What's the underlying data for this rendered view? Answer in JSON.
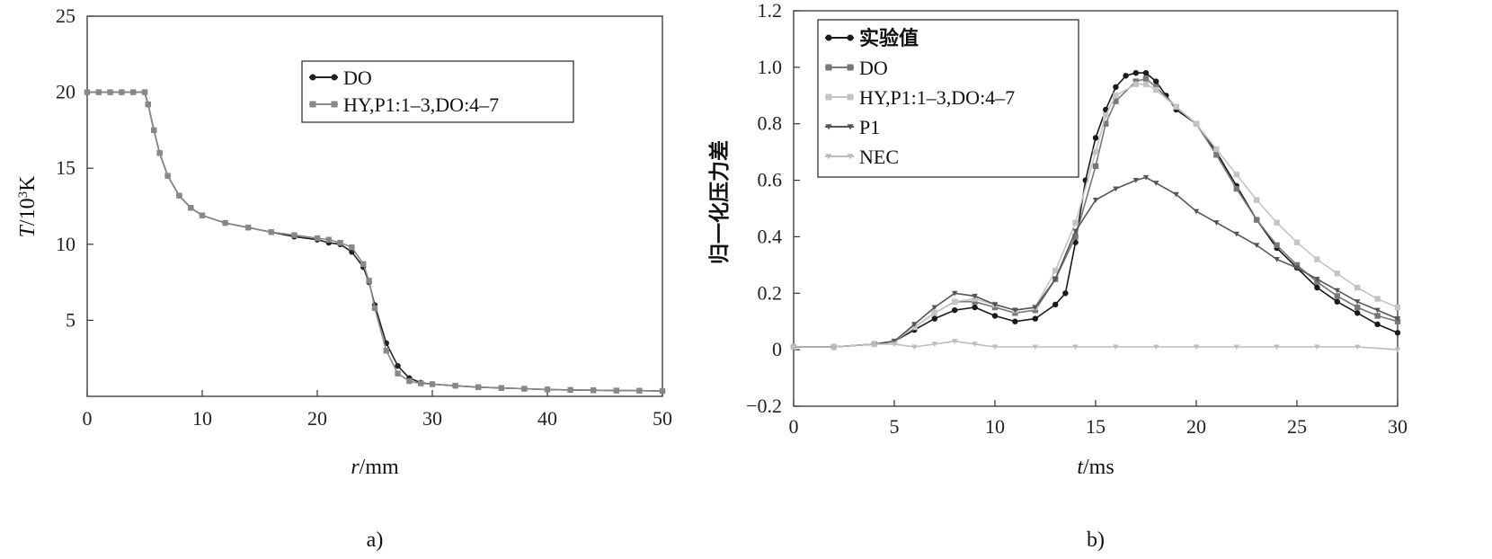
{
  "chart_data": [
    {
      "type": "line",
      "caption": "a)",
      "xlabel_var": "r",
      "xlabel_unit": "/mm",
      "ylabel_var": "T",
      "ylabel_unit": "/10",
      "ylabel_sup": "3",
      "ylabel_tail": "K",
      "xlim": [
        0,
        50
      ],
      "ylim": [
        0,
        25
      ],
      "xticks": [
        "0",
        "10",
        "20",
        "30",
        "40",
        "50"
      ],
      "yticks": [
        "5",
        "10",
        "15",
        "20",
        "25"
      ],
      "legend_position": "top-right",
      "series": [
        {
          "name": "DO",
          "color": "#222222",
          "marker": "circle",
          "points": [
            [
              0,
              20
            ],
            [
              1,
              20
            ],
            [
              2,
              20
            ],
            [
              3,
              20
            ],
            [
              4,
              20
            ],
            [
              5,
              20
            ],
            [
              5.3,
              19.2
            ],
            [
              5.8,
              17.5
            ],
            [
              6.3,
              16
            ],
            [
              7,
              14.5
            ],
            [
              8,
              13.2
            ],
            [
              9,
              12.4
            ],
            [
              10,
              11.9
            ],
            [
              12,
              11.4
            ],
            [
              14,
              11.1
            ],
            [
              16,
              10.8
            ],
            [
              18,
              10.5
            ],
            [
              20,
              10.3
            ],
            [
              21,
              10.1
            ],
            [
              22,
              10
            ],
            [
              23,
              9.5
            ],
            [
              24,
              8.5
            ],
            [
              24.5,
              7.5
            ],
            [
              25,
              6
            ],
            [
              26,
              3.5
            ],
            [
              27,
              2
            ],
            [
              28,
              1.2
            ],
            [
              29,
              0.9
            ],
            [
              30,
              0.8
            ],
            [
              32,
              0.7
            ],
            [
              34,
              0.6
            ],
            [
              36,
              0.55
            ],
            [
              38,
              0.5
            ],
            [
              40,
              0.45
            ],
            [
              42,
              0.42
            ],
            [
              44,
              0.4
            ],
            [
              46,
              0.38
            ],
            [
              48,
              0.37
            ],
            [
              50,
              0.35
            ]
          ]
        },
        {
          "name": "HY,P1:1–3,DO:4–7",
          "color": "#888888",
          "marker": "square",
          "points": [
            [
              0,
              20
            ],
            [
              1,
              20
            ],
            [
              2,
              20
            ],
            [
              3,
              20
            ],
            [
              4,
              20
            ],
            [
              5,
              20
            ],
            [
              5.3,
              19.2
            ],
            [
              5.8,
              17.5
            ],
            [
              6.3,
              16
            ],
            [
              7,
              14.5
            ],
            [
              8,
              13.2
            ],
            [
              9,
              12.4
            ],
            [
              10,
              11.9
            ],
            [
              12,
              11.4
            ],
            [
              14,
              11.1
            ],
            [
              16,
              10.8
            ],
            [
              18,
              10.6
            ],
            [
              20,
              10.4
            ],
            [
              21,
              10.3
            ],
            [
              22,
              10.1
            ],
            [
              23,
              9.8
            ],
            [
              24,
              8.7
            ],
            [
              24.5,
              7.6
            ],
            [
              25,
              5.8
            ],
            [
              26,
              3
            ],
            [
              27,
              1.5
            ],
            [
              28,
              1
            ],
            [
              29,
              0.85
            ],
            [
              30,
              0.8
            ],
            [
              32,
              0.7
            ],
            [
              34,
              0.6
            ],
            [
              36,
              0.55
            ],
            [
              38,
              0.5
            ],
            [
              40,
              0.45
            ],
            [
              42,
              0.42
            ],
            [
              44,
              0.4
            ],
            [
              46,
              0.38
            ],
            [
              48,
              0.37
            ],
            [
              50,
              0.35
            ]
          ]
        }
      ]
    },
    {
      "type": "line",
      "caption": "b)",
      "xlabel_var": "t",
      "xlabel_unit": "/ms",
      "ylabel": "归一化压力差",
      "xlim": [
        0,
        30
      ],
      "ylim": [
        -0.2,
        1.2
      ],
      "xticks": [
        "0",
        "5",
        "10",
        "15",
        "20",
        "25",
        "30"
      ],
      "yticks": [
        "−0.2",
        "0",
        "0.2",
        "0.4",
        "0.6",
        "0.8",
        "1.0",
        "1.2"
      ],
      "legend_position": "top-left",
      "series": [
        {
          "name": "实验值",
          "color": "#1a1a1a",
          "marker": "circle",
          "points": [
            [
              0,
              0.01
            ],
            [
              2,
              0.01
            ],
            [
              4,
              0.02
            ],
            [
              5,
              0.03
            ],
            [
              6,
              0.07
            ],
            [
              7,
              0.11
            ],
            [
              8,
              0.14
            ],
            [
              9,
              0.15
            ],
            [
              10,
              0.12
            ],
            [
              11,
              0.1
            ],
            [
              12,
              0.11
            ],
            [
              13,
              0.16
            ],
            [
              13.5,
              0.2
            ],
            [
              14,
              0.38
            ],
            [
              14.5,
              0.6
            ],
            [
              15,
              0.75
            ],
            [
              15.5,
              0.85
            ],
            [
              16,
              0.93
            ],
            [
              16.5,
              0.97
            ],
            [
              17,
              0.98
            ],
            [
              17.5,
              0.98
            ],
            [
              18,
              0.95
            ],
            [
              18.5,
              0.9
            ],
            [
              19,
              0.85
            ],
            [
              20,
              0.8
            ],
            [
              21,
              0.7
            ],
            [
              22,
              0.58
            ],
            [
              23,
              0.46
            ],
            [
              24,
              0.36
            ],
            [
              25,
              0.29
            ],
            [
              26,
              0.22
            ],
            [
              27,
              0.17
            ],
            [
              28,
              0.13
            ],
            [
              29,
              0.09
            ],
            [
              30,
              0.06
            ]
          ]
        },
        {
          "name": "DO",
          "color": "#777777",
          "marker": "square",
          "points": [
            [
              0,
              0.01
            ],
            [
              2,
              0.01
            ],
            [
              4,
              0.02
            ],
            [
              5,
              0.03
            ],
            [
              6,
              0.08
            ],
            [
              7,
              0.13
            ],
            [
              8,
              0.17
            ],
            [
              9,
              0.17
            ],
            [
              10,
              0.15
            ],
            [
              11,
              0.13
            ],
            [
              12,
              0.14
            ],
            [
              13,
              0.25
            ],
            [
              14,
              0.4
            ],
            [
              15,
              0.65
            ],
            [
              15.5,
              0.8
            ],
            [
              16,
              0.88
            ],
            [
              17,
              0.95
            ],
            [
              17.5,
              0.96
            ],
            [
              18,
              0.93
            ],
            [
              19,
              0.86
            ],
            [
              20,
              0.8
            ],
            [
              21,
              0.69
            ],
            [
              22,
              0.57
            ],
            [
              23,
              0.46
            ],
            [
              24,
              0.37
            ],
            [
              25,
              0.3
            ],
            [
              26,
              0.24
            ],
            [
              27,
              0.19
            ],
            [
              28,
              0.15
            ],
            [
              29,
              0.12
            ],
            [
              30,
              0.1
            ]
          ]
        },
        {
          "name": "HY,P1:1–3,DO:4–7",
          "color": "#c4c4c4",
          "marker": "square",
          "points": [
            [
              0,
              0.01
            ],
            [
              2,
              0.01
            ],
            [
              4,
              0.02
            ],
            [
              5,
              0.03
            ],
            [
              6,
              0.08
            ],
            [
              7,
              0.13
            ],
            [
              8,
              0.17
            ],
            [
              9,
              0.18
            ],
            [
              10,
              0.16
            ],
            [
              11,
              0.14
            ],
            [
              12,
              0.15
            ],
            [
              13,
              0.28
            ],
            [
              14,
              0.45
            ],
            [
              15,
              0.7
            ],
            [
              15.5,
              0.83
            ],
            [
              16,
              0.9
            ],
            [
              17,
              0.94
            ],
            [
              17.5,
              0.94
            ],
            [
              18,
              0.92
            ],
            [
              19,
              0.86
            ],
            [
              20,
              0.8
            ],
            [
              21,
              0.71
            ],
            [
              22,
              0.62
            ],
            [
              23,
              0.53
            ],
            [
              24,
              0.45
            ],
            [
              25,
              0.38
            ],
            [
              26,
              0.32
            ],
            [
              27,
              0.27
            ],
            [
              28,
              0.22
            ],
            [
              29,
              0.18
            ],
            [
              30,
              0.15
            ]
          ]
        },
        {
          "name": "P1",
          "color": "#555555",
          "marker": "triangle",
          "points": [
            [
              0,
              0.01
            ],
            [
              2,
              0.01
            ],
            [
              4,
              0.02
            ],
            [
              5,
              0.03
            ],
            [
              6,
              0.09
            ],
            [
              7,
              0.15
            ],
            [
              8,
              0.2
            ],
            [
              9,
              0.19
            ],
            [
              10,
              0.16
            ],
            [
              11,
              0.14
            ],
            [
              12,
              0.15
            ],
            [
              13,
              0.25
            ],
            [
              14,
              0.42
            ],
            [
              15,
              0.53
            ],
            [
              16,
              0.57
            ],
            [
              17,
              0.6
            ],
            [
              17.5,
              0.61
            ],
            [
              18,
              0.59
            ],
            [
              19,
              0.55
            ],
            [
              20,
              0.49
            ],
            [
              21,
              0.45
            ],
            [
              22,
              0.41
            ],
            [
              23,
              0.37
            ],
            [
              24,
              0.32
            ],
            [
              25,
              0.29
            ],
            [
              26,
              0.25
            ],
            [
              27,
              0.21
            ],
            [
              28,
              0.17
            ],
            [
              29,
              0.14
            ],
            [
              30,
              0.11
            ]
          ]
        },
        {
          "name": "NEC",
          "color": "#bdbdbd",
          "marker": "triangle",
          "points": [
            [
              0,
              0.01
            ],
            [
              2,
              0.01
            ],
            [
              4,
              0.02
            ],
            [
              5,
              0.02
            ],
            [
              6,
              0.01
            ],
            [
              7,
              0.02
            ],
            [
              8,
              0.03
            ],
            [
              9,
              0.02
            ],
            [
              10,
              0.01
            ],
            [
              12,
              0.01
            ],
            [
              14,
              0.01
            ],
            [
              16,
              0.01
            ],
            [
              18,
              0.01
            ],
            [
              20,
              0.01
            ],
            [
              22,
              0.01
            ],
            [
              24,
              0.01
            ],
            [
              26,
              0.01
            ],
            [
              28,
              0.01
            ],
            [
              30,
              0
            ]
          ]
        }
      ]
    }
  ]
}
